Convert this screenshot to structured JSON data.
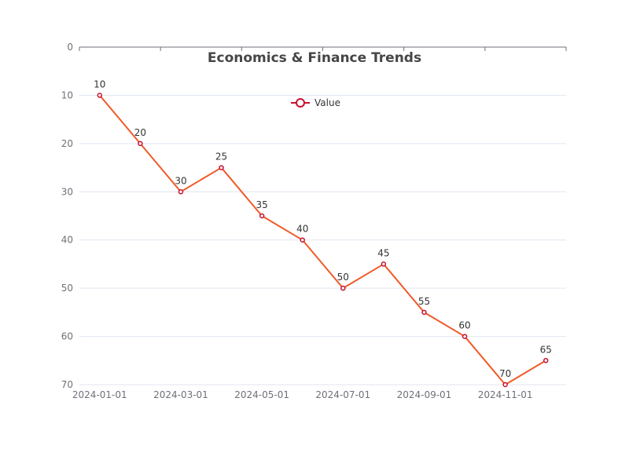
{
  "chart_data": {
    "type": "line",
    "title": "Economics & Finance Trends",
    "xlabel": "",
    "ylabel": "",
    "x": [
      "2024-01-01",
      "2024-02-01",
      "2024-03-01",
      "2024-04-01",
      "2024-05-01",
      "2024-06-01",
      "2024-07-01",
      "2024-08-01",
      "2024-09-01",
      "2024-10-01",
      "2024-11-01",
      "2024-12-01"
    ],
    "x_tick_labels": [
      "2024-01-01",
      "2024-03-01",
      "2024-05-01",
      "2024-07-01",
      "2024-09-01",
      "2024-11-01"
    ],
    "series": [
      {
        "name": "Value",
        "values": [
          10,
          20,
          30,
          25,
          35,
          40,
          50,
          45,
          55,
          60,
          70,
          65
        ]
      }
    ],
    "ylim": [
      0,
      70
    ],
    "y_inverted": true,
    "y_ticks": [
      0,
      10,
      20,
      30,
      40,
      50,
      60,
      70
    ],
    "grid": true,
    "legend": "top-center",
    "colors": {
      "line": "#f05a28",
      "marker": "#c8102e",
      "grid": "#e0e6f1",
      "axis": "#6e7079"
    }
  }
}
